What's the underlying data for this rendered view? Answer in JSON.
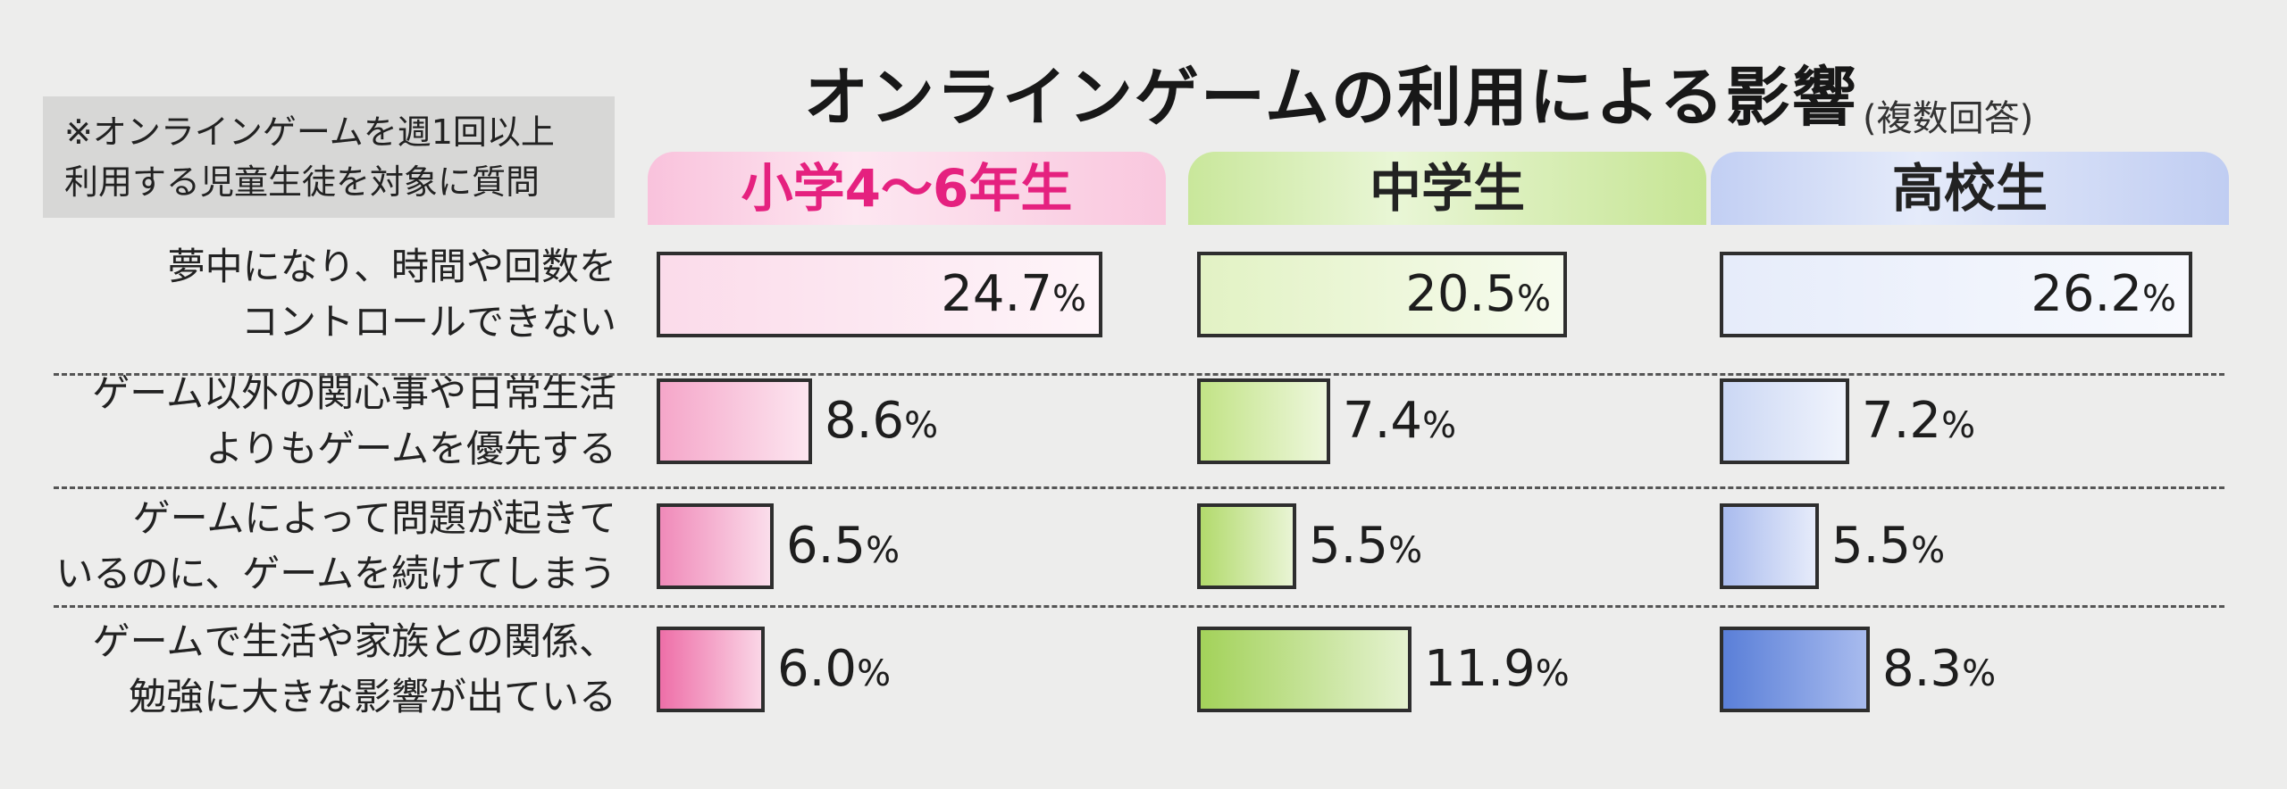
{
  "title": "オンラインゲームの利用による影響",
  "subtitle": "(複数回答)",
  "note": [
    "※オンラインゲームを週1回以上",
    "利用する児童生徒を対象に質問"
  ],
  "chart_data": {
    "type": "bar",
    "orientation": "horizontal",
    "unit": "%",
    "categories": [
      [
        "夢中になり、時間や回数を",
        "コントロールできない"
      ],
      [
        "ゲーム以外の関心事や日常生活",
        "よりもゲームを優先する"
      ],
      [
        "ゲームによって問題が起きて",
        "いるのに、ゲームを続けてしまう"
      ],
      [
        "ゲームで生活や家族との関係、",
        "勉強に大きな影響が出ている"
      ]
    ],
    "series": [
      {
        "name": "小学4〜6年生",
        "color": "#e8418e",
        "values": [
          24.7,
          8.6,
          6.5,
          6.0
        ],
        "labels": [
          "24.7",
          "8.6",
          "6.5",
          "6.0"
        ]
      },
      {
        "name": "中学生",
        "color": "#8cc83c",
        "values": [
          20.5,
          7.4,
          5.5,
          11.9
        ],
        "labels": [
          "20.5",
          "7.4",
          "5.5",
          "11.9"
        ]
      },
      {
        "name": "高校生",
        "color": "#5a7fd8",
        "values": [
          26.2,
          7.2,
          5.5,
          8.3
        ],
        "labels": [
          "26.2",
          "7.2",
          "5.5",
          "8.3"
        ]
      }
    ],
    "percent_sign": "%"
  }
}
